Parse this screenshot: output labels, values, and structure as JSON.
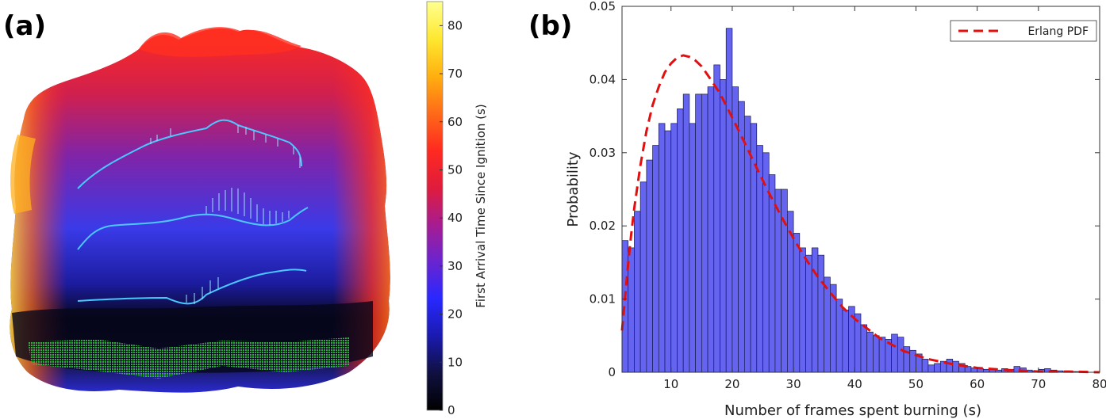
{
  "panel_a": {
    "label": "(a)",
    "colorbar": {
      "title": "First Arrival Time Since Ignition (s)",
      "range": [
        0,
        85
      ],
      "ticks": [
        0,
        10,
        20,
        30,
        40,
        50,
        60,
        70,
        80
      ],
      "tick_labels": [
        "0",
        "10",
        "20",
        "30",
        "40",
        "50",
        "60",
        "70",
        "80"
      ],
      "colormap": "hot-blue",
      "colors": [
        "#000000",
        "#101040",
        "#1a1ab0",
        "#2828ff",
        "#6a24d0",
        "#a81c90",
        "#e01c3c",
        "#ff2a20",
        "#ff6a18",
        "#ffb010",
        "#ffe830",
        "#ffff90"
      ]
    },
    "overlay_colors": {
      "contour": "#4ac8ff",
      "burning_cells": "#2ecc40"
    }
  },
  "panel_b": {
    "label": "(b)",
    "legend": {
      "entries": [
        {
          "label": "Erlang PDF",
          "style": "dashed",
          "color": "#e01010"
        }
      ],
      "placement": "top-right"
    }
  },
  "chart_data": {
    "type": "bar",
    "xlabel": "Number of frames spent burning (s)",
    "ylabel": "Probability",
    "xlim": [
      2,
      80
    ],
    "ylim": [
      0,
      0.05
    ],
    "xticks": [
      10,
      20,
      30,
      40,
      50,
      60,
      70,
      80
    ],
    "yticks": [
      0,
      0.01,
      0.02,
      0.03,
      0.04,
      0.05
    ],
    "ytick_labels": [
      "0",
      "0.01",
      "0.02",
      "0.03",
      "0.04",
      "0.05"
    ],
    "bar_color": "#6464f0",
    "bin_width": 1,
    "bins_start": [
      2,
      3,
      4,
      5,
      6,
      7,
      8,
      9,
      10,
      11,
      12,
      13,
      14,
      15,
      16,
      17,
      18,
      19,
      20,
      21,
      22,
      23,
      24,
      25,
      26,
      27,
      28,
      29,
      30,
      31,
      32,
      33,
      34,
      35,
      36,
      37,
      38,
      39,
      40,
      41,
      42,
      43,
      44,
      45,
      46,
      47,
      48,
      49,
      50,
      51,
      52,
      53,
      54,
      55,
      56,
      57,
      58,
      59,
      60,
      61,
      62,
      63,
      64,
      65,
      66,
      67,
      68,
      69,
      70,
      71,
      72,
      73,
      74,
      75,
      76,
      77,
      78,
      79
    ],
    "values": [
      0.018,
      0.017,
      0.022,
      0.026,
      0.029,
      0.031,
      0.034,
      0.033,
      0.034,
      0.036,
      0.038,
      0.034,
      0.038,
      0.038,
      0.039,
      0.042,
      0.04,
      0.047,
      0.039,
      0.037,
      0.035,
      0.034,
      0.031,
      0.03,
      0.027,
      0.025,
      0.025,
      0.022,
      0.019,
      0.017,
      0.016,
      0.017,
      0.016,
      0.013,
      0.012,
      0.01,
      0.0085,
      0.009,
      0.008,
      0.0065,
      0.0055,
      0.005,
      0.0048,
      0.0045,
      0.0052,
      0.0048,
      0.0035,
      0.003,
      0.0025,
      0.0018,
      0.001,
      0.0012,
      0.0015,
      0.0018,
      0.0015,
      0.0012,
      0.0008,
      0.0006,
      0.0005,
      0.0004,
      0.0004,
      0.0003,
      0.0005,
      0.0004,
      0.0008,
      0.0006,
      0.0003,
      0.0002,
      0.0004,
      0.0005,
      0.0003,
      0.0002,
      0.0001,
      0.0001,
      0.0001,
      0.0001,
      0.0,
      0.0
    ],
    "series": [
      {
        "name": "Erlang PDF",
        "type": "line",
        "style": "dashed",
        "color": "#e01010",
        "x": [
          2.0,
          2.5,
          3.0,
          3.5,
          4.0,
          5.0,
          6.0,
          7.0,
          8.0,
          9.0,
          10.0,
          11.0,
          12.0,
          13.0,
          14.0,
          15.0,
          16.0,
          18.0,
          20.0,
          22.0,
          24.0,
          26.0,
          28.0,
          30.0,
          32.0,
          34.0,
          36.0,
          38.0,
          40.0,
          44.0,
          48.0,
          52.0,
          56.0,
          60.0,
          65.0,
          70.0,
          75.0,
          80.0
        ],
        "y": [
          0.0057,
          0.0103,
          0.0148,
          0.0189,
          0.0224,
          0.0283,
          0.033,
          0.0365,
          0.039,
          0.041,
          0.0422,
          0.043,
          0.0433,
          0.0431,
          0.0426,
          0.0418,
          0.0406,
          0.0381,
          0.0348,
          0.0314,
          0.0279,
          0.0245,
          0.0213,
          0.0183,
          0.0155,
          0.013,
          0.0109,
          0.0089,
          0.0073,
          0.0047,
          0.0029,
          0.0018,
          0.0011,
          0.0006,
          0.0003,
          0.0001,
          0.0001,
          0.0
        ]
      }
    ]
  }
}
